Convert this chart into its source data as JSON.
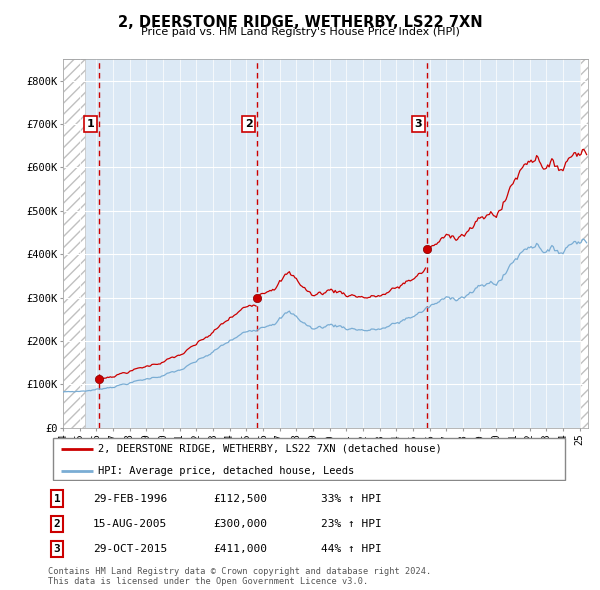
{
  "title": "2, DEERSTONE RIDGE, WETHERBY, LS22 7XN",
  "subtitle": "Price paid vs. HM Land Registry's House Price Index (HPI)",
  "xlim": [
    1994.0,
    2025.5
  ],
  "ylim": [
    0,
    850000
  ],
  "yticks": [
    0,
    100000,
    200000,
    300000,
    400000,
    500000,
    600000,
    700000,
    800000
  ],
  "ytick_labels": [
    "£0",
    "£100K",
    "£200K",
    "£300K",
    "£400K",
    "£500K",
    "£600K",
    "£700K",
    "£800K"
  ],
  "sale_dates": [
    1996.17,
    2005.63,
    2015.83
  ],
  "sale_prices": [
    112500,
    300000,
    411000
  ],
  "sale_labels": [
    "1",
    "2",
    "3"
  ],
  "vline_color": "#cc0000",
  "sale_marker_color": "#cc0000",
  "hpi_line_color": "#7aadd4",
  "price_line_color": "#cc0000",
  "hatch_start": 2025.0,
  "legend_entries": [
    "2, DEERSTONE RIDGE, WETHERBY, LS22 7XN (detached house)",
    "HPI: Average price, detached house, Leeds"
  ],
  "table_rows": [
    [
      "1",
      "29-FEB-1996",
      "£112,500",
      "33% ↑ HPI"
    ],
    [
      "2",
      "15-AUG-2005",
      "£300,000",
      "23% ↑ HPI"
    ],
    [
      "3",
      "29-OCT-2015",
      "£411,000",
      "44% ↑ HPI"
    ]
  ],
  "footer": "Contains HM Land Registry data © Crown copyright and database right 2024.\nThis data is licensed under the Open Government Licence v3.0.",
  "plot_bg": "#dce9f5",
  "grid_color": "#c8d8ea"
}
